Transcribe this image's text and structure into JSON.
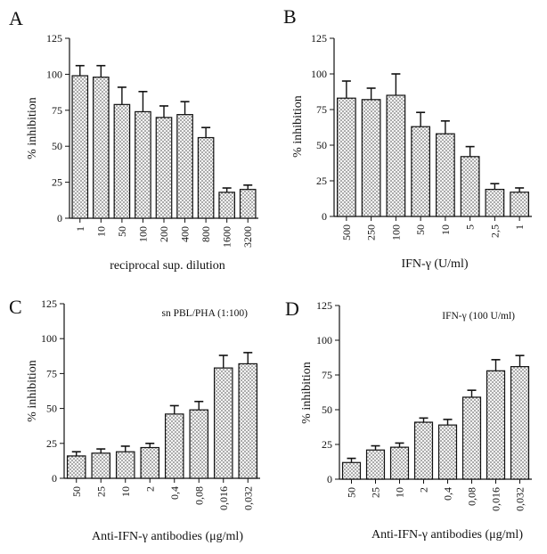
{
  "chart_data": [
    {
      "type": "bar",
      "panel": "A",
      "title": "",
      "ylabel": "% inhibition",
      "xlabel": "reciprocal sup. dilution",
      "ylim": [
        0,
        125
      ],
      "yticks": [
        0,
        25,
        50,
        75,
        100,
        125
      ],
      "categories": [
        "1",
        "10",
        "50",
        "100",
        "200",
        "400",
        "800",
        "1600",
        "3200"
      ],
      "values": [
        99,
        98,
        79,
        74,
        70,
        72,
        56,
        18,
        20
      ],
      "errors": [
        7,
        8,
        12,
        14,
        8,
        9,
        7,
        3,
        3
      ],
      "annotation": "",
      "bar_fill": "#f4f4f4",
      "dot_color": "#4a4a4a"
    },
    {
      "type": "bar",
      "panel": "B",
      "title": "",
      "ylabel": "% inhibition",
      "xlabel": "IFN-γ (U/ml)",
      "ylim": [
        0,
        125
      ],
      "yticks": [
        0,
        25,
        50,
        75,
        100,
        125
      ],
      "categories": [
        "500",
        "250",
        "100",
        "50",
        "10",
        "5",
        "2,5",
        "1"
      ],
      "values": [
        83,
        82,
        85,
        63,
        58,
        42,
        19,
        17
      ],
      "errors": [
        12,
        8,
        15,
        10,
        9,
        7,
        4,
        3
      ],
      "annotation": "",
      "bar_fill": "#f4f4f4",
      "dot_color": "#4a4a4a"
    },
    {
      "type": "bar",
      "panel": "C",
      "title": "",
      "ylabel": "% inhibition",
      "xlabel": "Anti-IFN-γ antibodies (μg/ml)",
      "ylim": [
        0,
        125
      ],
      "yticks": [
        0,
        25,
        50,
        75,
        100,
        125
      ],
      "categories": [
        "50",
        "25",
        "10",
        "2",
        "0,4",
        "0,08",
        "0,016",
        "0,032"
      ],
      "values": [
        16,
        18,
        19,
        22,
        46,
        49,
        79,
        82
      ],
      "errors": [
        3,
        3,
        4,
        3,
        6,
        6,
        9,
        8
      ],
      "annotation": "sn PBL/PHA (1:100)",
      "bar_fill": "#f4f4f4",
      "dot_color": "#4a4a4a"
    },
    {
      "type": "bar",
      "panel": "D",
      "title": "",
      "ylabel": "% inhibition",
      "xlabel": "Anti-IFN-γ antibodies (μg/ml)",
      "ylim": [
        0,
        125
      ],
      "yticks": [
        0,
        25,
        50,
        75,
        100,
        125
      ],
      "categories": [
        "50",
        "25",
        "10",
        "2",
        "0,4",
        "0,08",
        "0,016",
        "0,032"
      ],
      "values": [
        12,
        21,
        23,
        41,
        39,
        59,
        78,
        81
      ],
      "errors": [
        3,
        3,
        3,
        3,
        4,
        5,
        8,
        8
      ],
      "annotation": "IFN-γ (100 U/ml)",
      "bar_fill": "#f4f4f4",
      "dot_color": "#4a4a4a"
    }
  ]
}
